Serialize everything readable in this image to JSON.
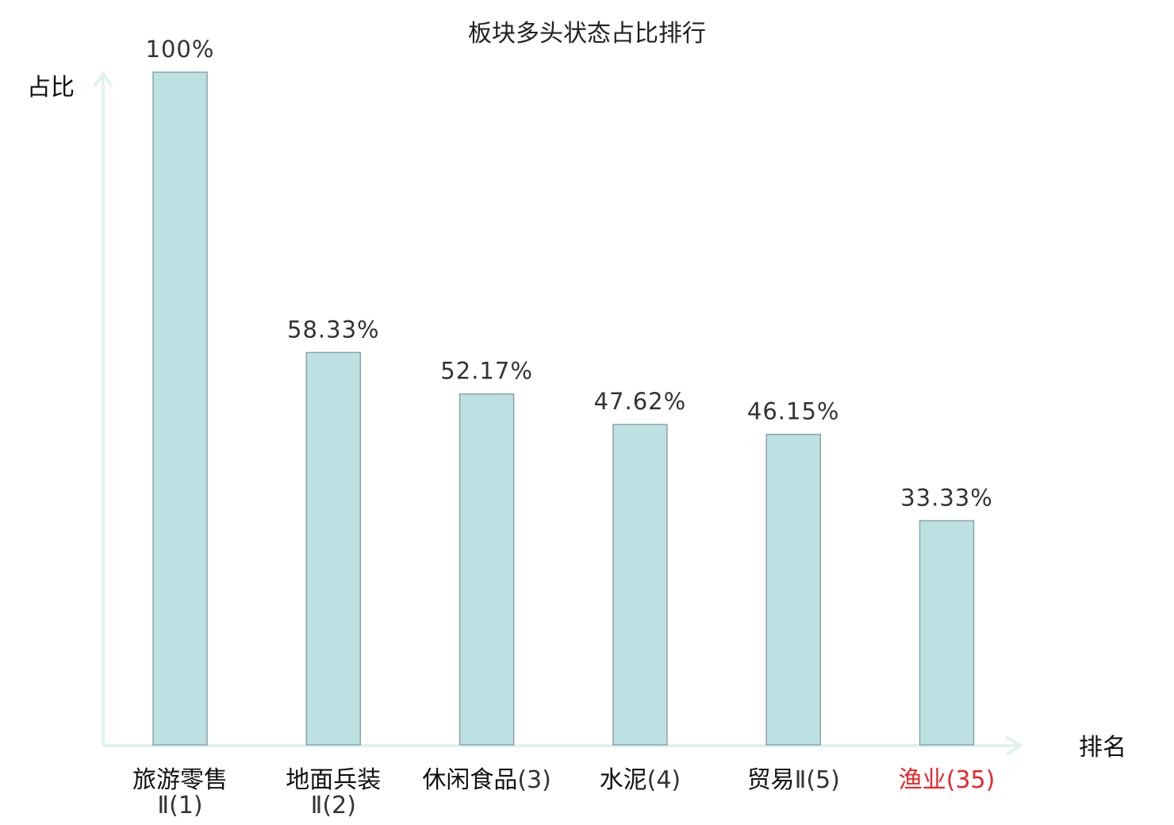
{
  "chart_data": {
    "type": "bar",
    "title": "板块多头状态占比排行",
    "ylabel": "占比",
    "xlabel": "排名",
    "ylim": [
      0,
      100
    ],
    "grid": false,
    "categories": [
      "旅游零售Ⅱ(1)",
      "地面兵装Ⅱ(2)",
      "休闲食品(3)",
      "水泥(4)",
      "贸易Ⅱ(5)",
      "渔业(35)"
    ],
    "tick_label_parts": [
      {
        "name": "旅游零售",
        "suffix": "Ⅱ(1)",
        "wrap": true
      },
      {
        "name": "地面兵装",
        "suffix": "Ⅱ(2)",
        "wrap": true
      },
      {
        "name": "休闲食品",
        "suffix": "(3)",
        "wrap": false
      },
      {
        "name": "水泥",
        "suffix": "(4)",
        "wrap": false
      },
      {
        "name": "贸易",
        "suffix": "Ⅱ(5)",
        "wrap": false
      },
      {
        "name": "渔业",
        "suffix": "(35)",
        "wrap": false,
        "highlight": true
      }
    ],
    "values": [
      100,
      58.33,
      52.17,
      47.62,
      46.15,
      33.33
    ],
    "value_labels": [
      "100%",
      "58.33%",
      "52.17%",
      "47.62%",
      "46.15%",
      "33.33%"
    ],
    "colors": {
      "bar_fill": "#bde1e3",
      "bar_stroke": "#8aa3a6",
      "axis": "#e0f2ef",
      "highlight_text": "#e8262b"
    }
  }
}
